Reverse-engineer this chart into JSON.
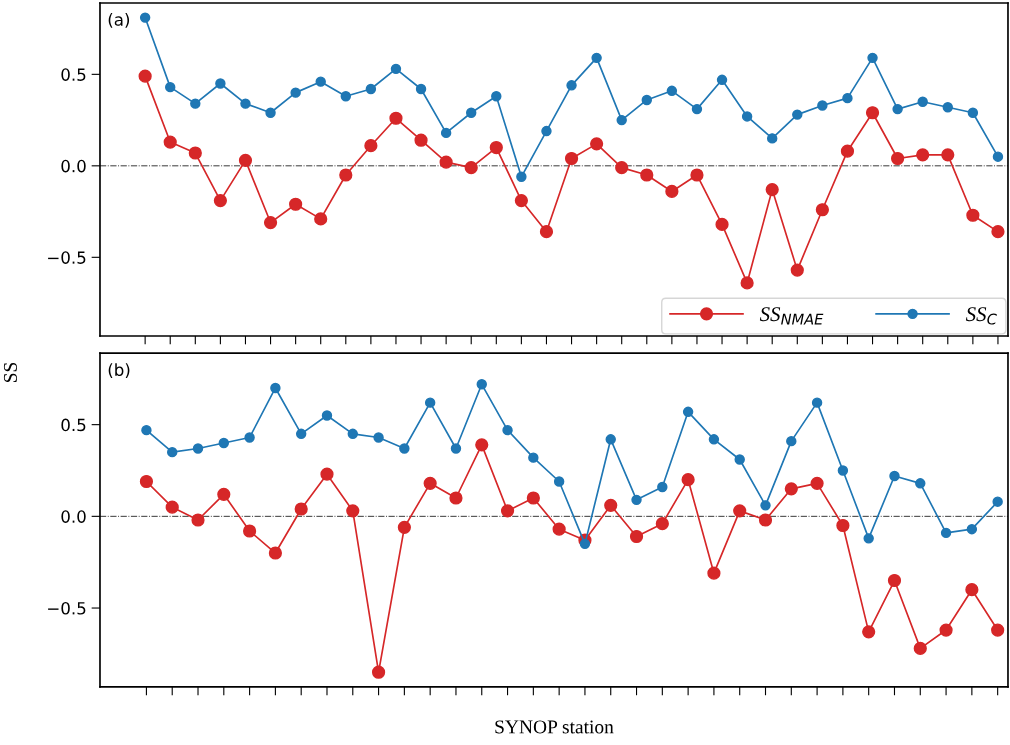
{
  "chart_data": [
    {
      "type": "line",
      "ylabel": "SS",
      "annotations": [
        "(a)"
      ],
      "categories": [
        null,
        null,
        null,
        null,
        null,
        null,
        null,
        null,
        null,
        null,
        null,
        null,
        null,
        null,
        null,
        null,
        null,
        null,
        null,
        null,
        null,
        null,
        null,
        null,
        null,
        null,
        null,
        null,
        null,
        null,
        null,
        null,
        null,
        null,
        null
      ],
      "series": [
        {
          "name": "SS$_{NMAE}$",
          "color": "#d62728",
          "values": [
            0.49,
            0.13,
            0.07,
            -0.19,
            0.03,
            -0.31,
            -0.21,
            -0.29,
            -0.05,
            0.11,
            0.26,
            0.14,
            0.02,
            -0.01,
            0.1,
            -0.19,
            -0.36,
            0.04,
            0.12,
            -0.01,
            -0.05,
            -0.14,
            -0.05,
            -0.32,
            -0.64,
            -0.13,
            -0.57,
            -0.24,
            0.08,
            0.29,
            0.04,
            0.06,
            0.06,
            -0.27,
            -0.36
          ]
        },
        {
          "name": "SS$_{C}$",
          "color": "#1f77b4",
          "values": [
            0.81,
            0.43,
            0.34,
            0.45,
            0.34,
            0.29,
            0.4,
            0.46,
            0.38,
            0.42,
            0.53,
            0.42,
            0.18,
            0.29,
            0.38,
            -0.06,
            0.19,
            0.44,
            0.59,
            0.25,
            0.36,
            0.41,
            0.31,
            0.47,
            0.27,
            0.15,
            0.28,
            0.33,
            0.37,
            0.59,
            0.31,
            0.35,
            0.32,
            0.29,
            0.05
          ]
        }
      ],
      "ylim": [
        -0.93,
        0.89
      ],
      "yticks": [
        {
          "value": -0.5,
          "label": "−0.5"
        },
        {
          "value": 0.0,
          "label": "0.0"
        },
        {
          "value": 0.5,
          "label": "0.5"
        }
      ],
      "ref_lines": [
        {
          "axis": "y",
          "value": 0,
          "color": "#333333",
          "line_style": "dashdot"
        }
      ],
      "marker": "circle",
      "line_style": "solid",
      "legend": "bottom right",
      "grid": false,
      "tick_labels": "y"
    },
    {
      "type": "line",
      "xlabel": "SYNOP station",
      "annotations": [
        "(b)"
      ],
      "categories": [
        null,
        null,
        null,
        null,
        null,
        null,
        null,
        null,
        null,
        null,
        null,
        null,
        null,
        null,
        null,
        null,
        null,
        null,
        null,
        null,
        null,
        null,
        null,
        null,
        null,
        null,
        null,
        null,
        null,
        null,
        null,
        null,
        null,
        null
      ],
      "series": [
        {
          "color": "#d62728",
          "values": [
            0.19,
            0.05,
            -0.02,
            0.12,
            -0.08,
            -0.2,
            0.04,
            0.23,
            0.03,
            -0.85,
            -0.06,
            0.18,
            0.1,
            0.39,
            0.03,
            0.1,
            -0.07,
            -0.13,
            0.06,
            -0.11,
            -0.04,
            0.2,
            -0.31,
            0.03,
            -0.02,
            0.15,
            0.18,
            -0.05,
            -0.63,
            -0.35,
            -0.72,
            -0.62,
            -0.4,
            -0.62
          ]
        },
        {
          "color": "#1f77b4",
          "values": [
            0.47,
            0.35,
            0.37,
            0.4,
            0.43,
            0.7,
            0.45,
            0.55,
            0.45,
            0.43,
            0.37,
            0.62,
            0.37,
            0.72,
            0.47,
            0.32,
            0.19,
            -0.15,
            0.42,
            0.09,
            0.16,
            0.57,
            0.42,
            0.31,
            0.06,
            0.41,
            0.62,
            0.25,
            -0.12,
            0.22,
            0.18,
            -0.09,
            -0.07,
            0.08
          ]
        }
      ],
      "ylim": [
        -0.93,
        0.89
      ],
      "yticks": [
        {
          "value": -0.5,
          "label": "−0.5"
        },
        {
          "value": 0.0,
          "label": "0.0"
        },
        {
          "value": 0.5,
          "label": "0.5"
        }
      ],
      "ref_lines": [
        {
          "axis": "y",
          "value": 0,
          "color": "#333333",
          "line_style": "dashdot"
        }
      ],
      "marker": "circle",
      "line_style": "solid",
      "grid": false,
      "tick_labels": "y"
    }
  ]
}
